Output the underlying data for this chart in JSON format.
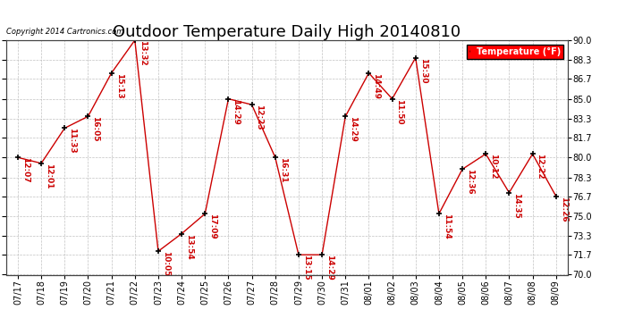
{
  "title": "Outdoor Temperature Daily High 20140810",
  "copyright": "Copyright 2014 Cartronics.com",
  "legend_label": "Temperature (°F)",
  "dates": [
    "07/17",
    "07/18",
    "07/19",
    "07/20",
    "07/21",
    "07/22",
    "07/23",
    "07/24",
    "07/25",
    "07/26",
    "07/27",
    "07/28",
    "07/29",
    "07/30",
    "07/31",
    "08/01",
    "08/02",
    "08/03",
    "08/04",
    "08/05",
    "08/06",
    "08/07",
    "08/08",
    "08/09"
  ],
  "temps": [
    80.0,
    79.5,
    82.5,
    83.5,
    87.2,
    90.0,
    72.0,
    73.5,
    75.2,
    85.0,
    84.5,
    80.0,
    71.7,
    71.7,
    83.5,
    87.2,
    85.0,
    88.5,
    75.2,
    79.0,
    80.3,
    77.0,
    80.3,
    76.7
  ],
  "time_labels": [
    "12:07",
    "12:01",
    "11:33",
    "16:05",
    "15:13",
    "13:32",
    "10:05",
    "13:54",
    "17:09",
    "14:29",
    "12:23",
    "16:31",
    "13:15",
    "14:29",
    "14:29",
    "14:49",
    "11:50",
    "15:30",
    "11:54",
    "12:36",
    "10:12",
    "14:35",
    "12:22",
    "12:26"
  ],
  "ylim": [
    70.0,
    90.0
  ],
  "yticks": [
    70.0,
    71.7,
    73.3,
    75.0,
    76.7,
    78.3,
    80.0,
    81.7,
    83.3,
    85.0,
    86.7,
    88.3,
    90.0
  ],
  "line_color": "#cc0000",
  "marker_color": "#000000",
  "bg_color": "#ffffff",
  "grid_color": "#bbbbbb",
  "label_color": "#cc0000",
  "title_fontsize": 13,
  "tick_fontsize": 7,
  "annot_fontsize": 6.5
}
